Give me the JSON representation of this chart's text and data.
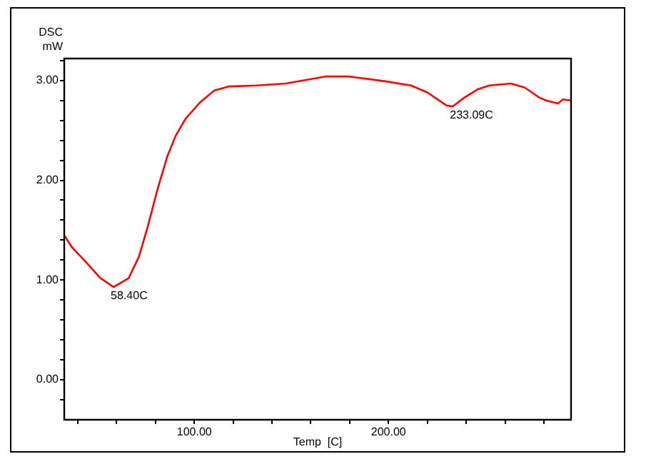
{
  "chart_data": {
    "type": "line",
    "xlabel": "Temp  [C]",
    "ylabel": "DSC\nmW",
    "x": [
      33,
      36.9,
      44.2,
      51.6,
      58.4,
      66.2,
      71.4,
      75.8,
      80.9,
      86.1,
      90.5,
      95.6,
      102.9,
      110.3,
      117.6,
      132,
      147,
      167.5,
      179.7,
      199,
      211.5,
      220,
      229.8,
      233.09,
      238.4,
      245.8,
      251.9,
      263,
      270,
      273.9,
      277.5,
      281.2,
      287.3,
      289.8,
      293.8
    ],
    "series": [
      {
        "color": "#ff0000",
        "values": [
          1.45,
          1.33,
          1.18,
          1.02,
          0.93,
          1.02,
          1.23,
          1.52,
          1.9,
          2.24,
          2.45,
          2.62,
          2.78,
          2.9,
          2.94,
          2.95,
          2.97,
          3.04,
          3.04,
          2.99,
          2.95,
          2.88,
          2.75,
          2.74,
          2.82,
          2.91,
          2.95,
          2.97,
          2.93,
          2.88,
          2.83,
          2.8,
          2.77,
          2.81,
          2.8
        ]
      }
    ],
    "xlim": [
      33,
      294
    ],
    "ylim": [
      -0.4,
      3.22
    ],
    "xticks": [
      {
        "value": 40,
        "label": null
      },
      {
        "value": 60,
        "label": null
      },
      {
        "value": 80,
        "label": null
      },
      {
        "value": 100,
        "label": "100.00"
      },
      {
        "value": 120,
        "label": null
      },
      {
        "value": 140,
        "label": null
      },
      {
        "value": 160,
        "label": null
      },
      {
        "value": 180,
        "label": null
      },
      {
        "value": 200,
        "label": "200.00"
      },
      {
        "value": 220,
        "label": null
      },
      {
        "value": 240,
        "label": null
      },
      {
        "value": 260,
        "label": null
      },
      {
        "value": 280,
        "label": null
      }
    ],
    "yticks": [
      {
        "value": -0.2,
        "label": null
      },
      {
        "value": 0,
        "label": "0.00"
      },
      {
        "value": 0.2,
        "label": null
      },
      {
        "value": 0.4,
        "label": null
      },
      {
        "value": 0.6,
        "label": null
      },
      {
        "value": 0.8,
        "label": null
      },
      {
        "value": 1,
        "label": "1.00"
      },
      {
        "value": 1.2,
        "label": null
      },
      {
        "value": 1.4,
        "label": null
      },
      {
        "value": 1.6,
        "label": null
      },
      {
        "value": 1.8,
        "label": null
      },
      {
        "value": 2,
        "label": "2.00"
      },
      {
        "value": 2.2,
        "label": null
      },
      {
        "value": 2.4,
        "label": null
      },
      {
        "value": 2.6,
        "label": null
      },
      {
        "value": 2.8,
        "label": null
      },
      {
        "value": 3,
        "label": "3.00"
      },
      {
        "value": 3.2,
        "label": null
      }
    ],
    "annotations": [
      {
        "text": "58.40C",
        "x": 58.4,
        "y": 0.93
      },
      {
        "text": "233.09C",
        "x": 233.09,
        "y": 2.74
      }
    ],
    "grid": false,
    "legend": false,
    "marker": "none",
    "line_style": "solid"
  }
}
